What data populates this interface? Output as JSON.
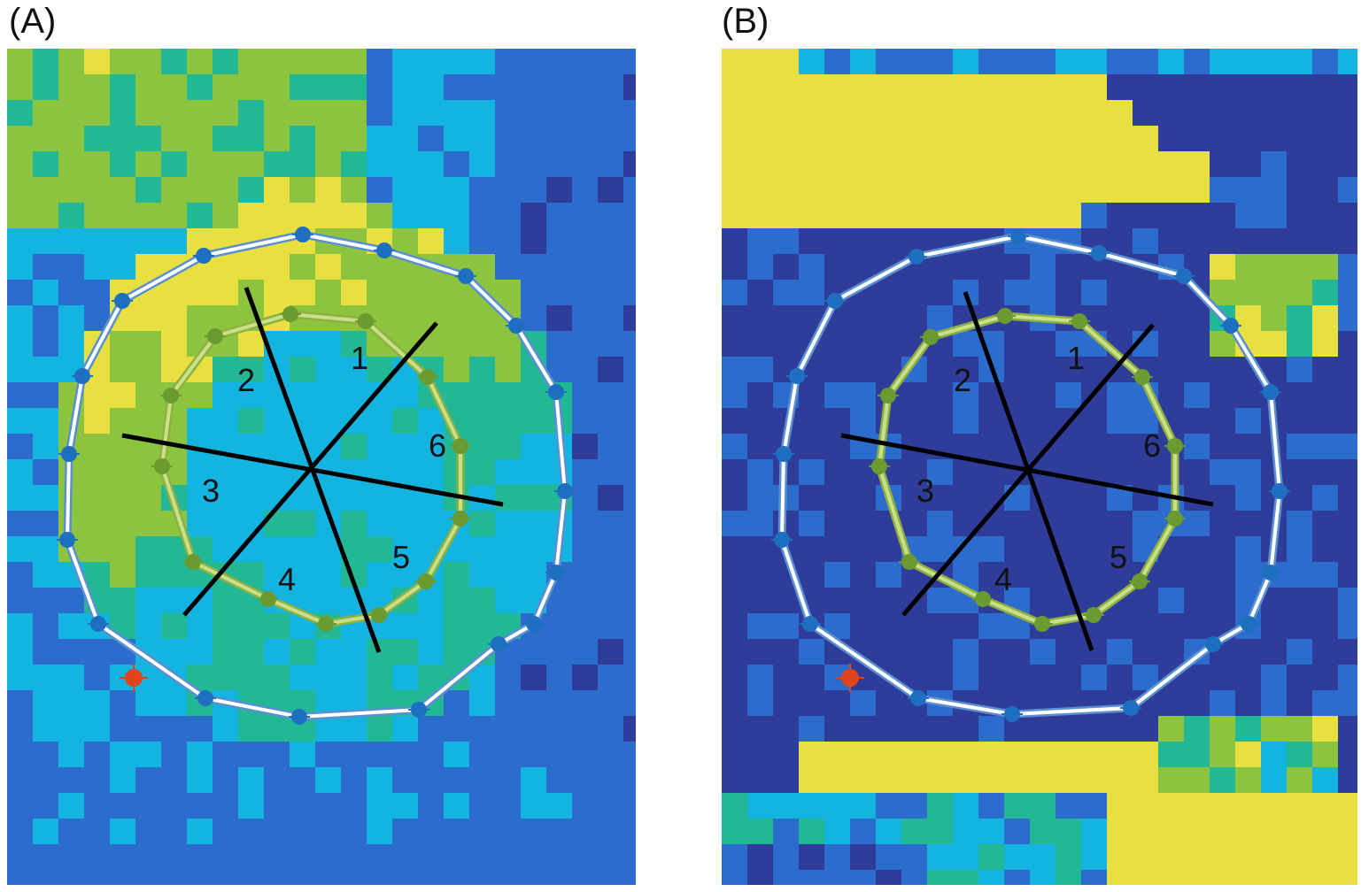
{
  "panels": [
    {
      "label": "(A)",
      "segments": [
        "1",
        "2",
        "3",
        "4",
        "5",
        "6"
      ],
      "background": "#3b55b0"
    },
    {
      "label": "(B)",
      "segments": [
        "1",
        "2",
        "3",
        "4",
        "5",
        "6"
      ],
      "background": "#2f3f9e"
    }
  ],
  "colors": {
    "epicardial_contour": "#ffffff",
    "epicardial_point": "#1f6fc0",
    "endocardial_contour": "#c8e08a",
    "endocardial_point": "#6a9a30",
    "reference_point": "#e0441c",
    "segment_lines": "#000000",
    "colormap": [
      "#2f3c9a",
      "#2b6ccc",
      "#14b4e0",
      "#22b896",
      "#8cc440",
      "#e8e040",
      "#f5b530"
    ]
  }
}
